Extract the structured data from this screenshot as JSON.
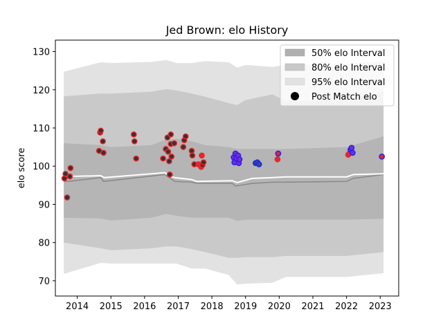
{
  "chart_data": {
    "type": "line",
    "title": "Jed Brown: elo History",
    "xlabel": "",
    "ylabel": "elo score",
    "xlim": [
      2013.35,
      2023.55
    ],
    "ylim": [
      66,
      133
    ],
    "x_ticks": [
      "2014",
      "2015",
      "2016",
      "2017",
      "2018",
      "2019",
      "2020",
      "2021",
      "2022",
      "2023"
    ],
    "y_ticks": [
      70,
      80,
      90,
      100,
      110,
      120,
      130
    ],
    "grid": false,
    "legend_position": "top-right",
    "legend": [
      {
        "label": "50% elo Interval",
        "kind": "band",
        "color": "#b0b0b0"
      },
      {
        "label": "80% elo Interval",
        "kind": "band",
        "color": "#c8c8c8"
      },
      {
        "label": "95% elo Interval",
        "kind": "band",
        "color": "#e2e2e2"
      },
      {
        "label": "Post Match elo",
        "kind": "marker",
        "color": "#000000"
      }
    ],
    "bands": {
      "x": [
        2013.6,
        2014.7,
        2015.0,
        2016.2,
        2016.65,
        2016.95,
        2017.4,
        2017.8,
        2018.5,
        2018.75,
        2019.0,
        2019.8,
        2020.2,
        2022.0,
        2023.1
      ],
      "p95_upper": [
        124.7,
        127.2,
        127.0,
        127.3,
        127.8,
        127.0,
        127.0,
        127.5,
        127.2,
        125.8,
        126.5,
        126.0,
        126.5,
        126.8,
        127.5
      ],
      "p95_lower": [
        71.8,
        74.7,
        74.5,
        74.5,
        74.5,
        74.5,
        73.2,
        73.2,
        71.5,
        69.0,
        69.2,
        69.5,
        71.0,
        71.0,
        72.0
      ],
      "p80_upper": [
        118.3,
        119.0,
        119.0,
        119.5,
        120.2,
        119.8,
        119.0,
        118.2,
        116.5,
        116.0,
        117.3,
        118.8,
        117.0,
        117.5,
        119.5
      ],
      "p80_lower": [
        80.0,
        78.5,
        78.0,
        78.5,
        79.0,
        79.0,
        78.3,
        77.5,
        76.0,
        76.0,
        76.2,
        76.2,
        76.5,
        76.5,
        77.5
      ],
      "p50_upper": [
        106.0,
        105.5,
        105.0,
        105.5,
        107.0,
        107.2,
        106.5,
        105.5,
        105.0,
        104.5,
        104.5,
        104.5,
        104.5,
        105.0,
        107.8
      ],
      "p50_lower": [
        86.5,
        86.3,
        85.8,
        86.5,
        87.5,
        87.0,
        86.5,
        86.5,
        86.5,
        85.7,
        86.0,
        86.0,
        86.0,
        86.0,
        86.2
      ]
    },
    "series": [
      {
        "kind": "mean",
        "color": "#888888",
        "x": [
          2013.6,
          2013.75,
          2014.7,
          2014.78,
          2016.6,
          2016.9,
          2017.4,
          2017.55,
          2018.6,
          2018.7,
          2019.2,
          2019.8,
          2020.2,
          2022.0,
          2022.2,
          2023.1
        ],
        "values": [
          96.0,
          96.0,
          97.0,
          96.0,
          97.8,
          96.0,
          95.8,
          95.5,
          95.5,
          94.8,
          95.5,
          95.8,
          95.8,
          96.0,
          96.8,
          97.8
        ]
      },
      {
        "kind": "rating",
        "color": "#ffffff",
        "x": [
          2013.6,
          2013.75,
          2014.7,
          2014.8,
          2016.6,
          2016.75,
          2016.9,
          2017.4,
          2017.55,
          2018.6,
          2018.75,
          2019.2,
          2019.8,
          2020.2,
          2022.0,
          2022.2,
          2023.1
        ],
        "values": [
          97.5,
          97.3,
          97.5,
          97.0,
          98.3,
          97.3,
          97.0,
          96.5,
          96.0,
          96.2,
          95.7,
          96.8,
          97.0,
          97.2,
          97.2,
          97.8,
          98.0
        ]
      },
      {
        "kind": "points",
        "name": "Post Match elo",
        "x": [
          2013.62,
          2013.65,
          2013.7,
          2013.78,
          2013.8,
          2014.65,
          2014.68,
          2014.7,
          2014.76,
          2014.78,
          2015.68,
          2015.7,
          2015.75,
          2016.55,
          2016.63,
          2016.68,
          2016.7,
          2016.73,
          2016.75,
          2016.78,
          2016.78,
          2016.8,
          2016.88,
          2017.15,
          2017.18,
          2017.22,
          2017.4,
          2017.42,
          2017.48,
          2017.6,
          2017.68,
          2017.7,
          2017.72,
          2017.75,
          2018.65,
          2018.67,
          2018.7,
          2018.73,
          2018.78,
          2018.8,
          2018.82,
          2019.3,
          2019.35,
          2019.4,
          2019.95,
          2019.97,
          2022.05,
          2022.1,
          2022.12,
          2022.15,
          2022.18,
          2023.05
        ],
        "values": [
          96.8,
          98.0,
          91.8,
          97.3,
          99.5,
          104.0,
          108.8,
          109.3,
          106.5,
          103.5,
          108.3,
          106.5,
          102.0,
          102.0,
          104.5,
          107.5,
          103.8,
          101.3,
          97.8,
          105.8,
          108.3,
          102.5,
          106.0,
          105.0,
          106.8,
          107.8,
          104.0,
          102.8,
          100.5,
          100.5,
          99.8,
          102.8,
          100.3,
          101.0,
          102.3,
          101.0,
          103.3,
          102.0,
          102.8,
          100.8,
          101.8,
          100.8,
          101.0,
          100.5,
          101.8,
          103.3,
          103.0,
          103.5,
          104.3,
          104.8,
          103.5,
          102.5
        ],
        "edge_colors": [
          "#e8262a",
          "#e8262a",
          "#e8262a",
          "#e8262a",
          "#e8262a",
          "#e8262a",
          "#e8262a",
          "#e8262a",
          "#e8262a",
          "#e8262a",
          "#e8262a",
          "#e8262a",
          "#e8262a",
          "#e8262a",
          "#e8262a",
          "#e8262a",
          "#e8262a",
          "#e8262a",
          "#e8262a",
          "#e8262a",
          "#e8262a",
          "#e8262a",
          "#e8262a",
          "#e8262a",
          "#e8262a",
          "#e8262a",
          "#e8262a",
          "#e8262a",
          "#e8262a",
          "#e8262a",
          "#e8262a",
          "#e8262a",
          "#e8262a",
          "#e8262a",
          "#2222ee",
          "#2222ee",
          "#2222ee",
          "#2222ee",
          "#2222ee",
          "#2222ee",
          "#2222ee",
          "#2222ee",
          "#2222ee",
          "#2222ee",
          "#e8262a",
          "#2222ee",
          "#e8262a",
          "#e8262a",
          "#2222ee",
          "#2222ee",
          "#2222ee",
          "#2222ee"
        ],
        "fill_colors": [
          "#333333",
          "#333333",
          "#333333",
          "#333333",
          "#333333",
          "#333333",
          "#333333",
          "#333333",
          "#333333",
          "#333333",
          "#333333",
          "#333333",
          "#333333",
          "#333333",
          "#333333",
          "#333333",
          "#333333",
          "#333333",
          "#333333",
          "#333333",
          "#333333",
          "#333333",
          "#333333",
          "#333333",
          "#333333",
          "#333333",
          "#333333",
          "#333333",
          "#333333",
          "#e8262a",
          "#e8262a",
          "#e8262a",
          "#333333",
          "#333333",
          "#7a2bd5",
          "#7a2bd5",
          "#7a2bd5",
          "#7a2bd5",
          "#7a2bd5",
          "#7a2bd5",
          "#7a2bd5",
          "#334d8a",
          "#334d8a",
          "#334d8a",
          "#e8262a",
          "#e8262a",
          "#e8262a",
          "#e8262a",
          "#7a2bd5",
          "#7a2bd5",
          "#7a2bd5",
          "#e8262a"
        ]
      }
    ]
  }
}
